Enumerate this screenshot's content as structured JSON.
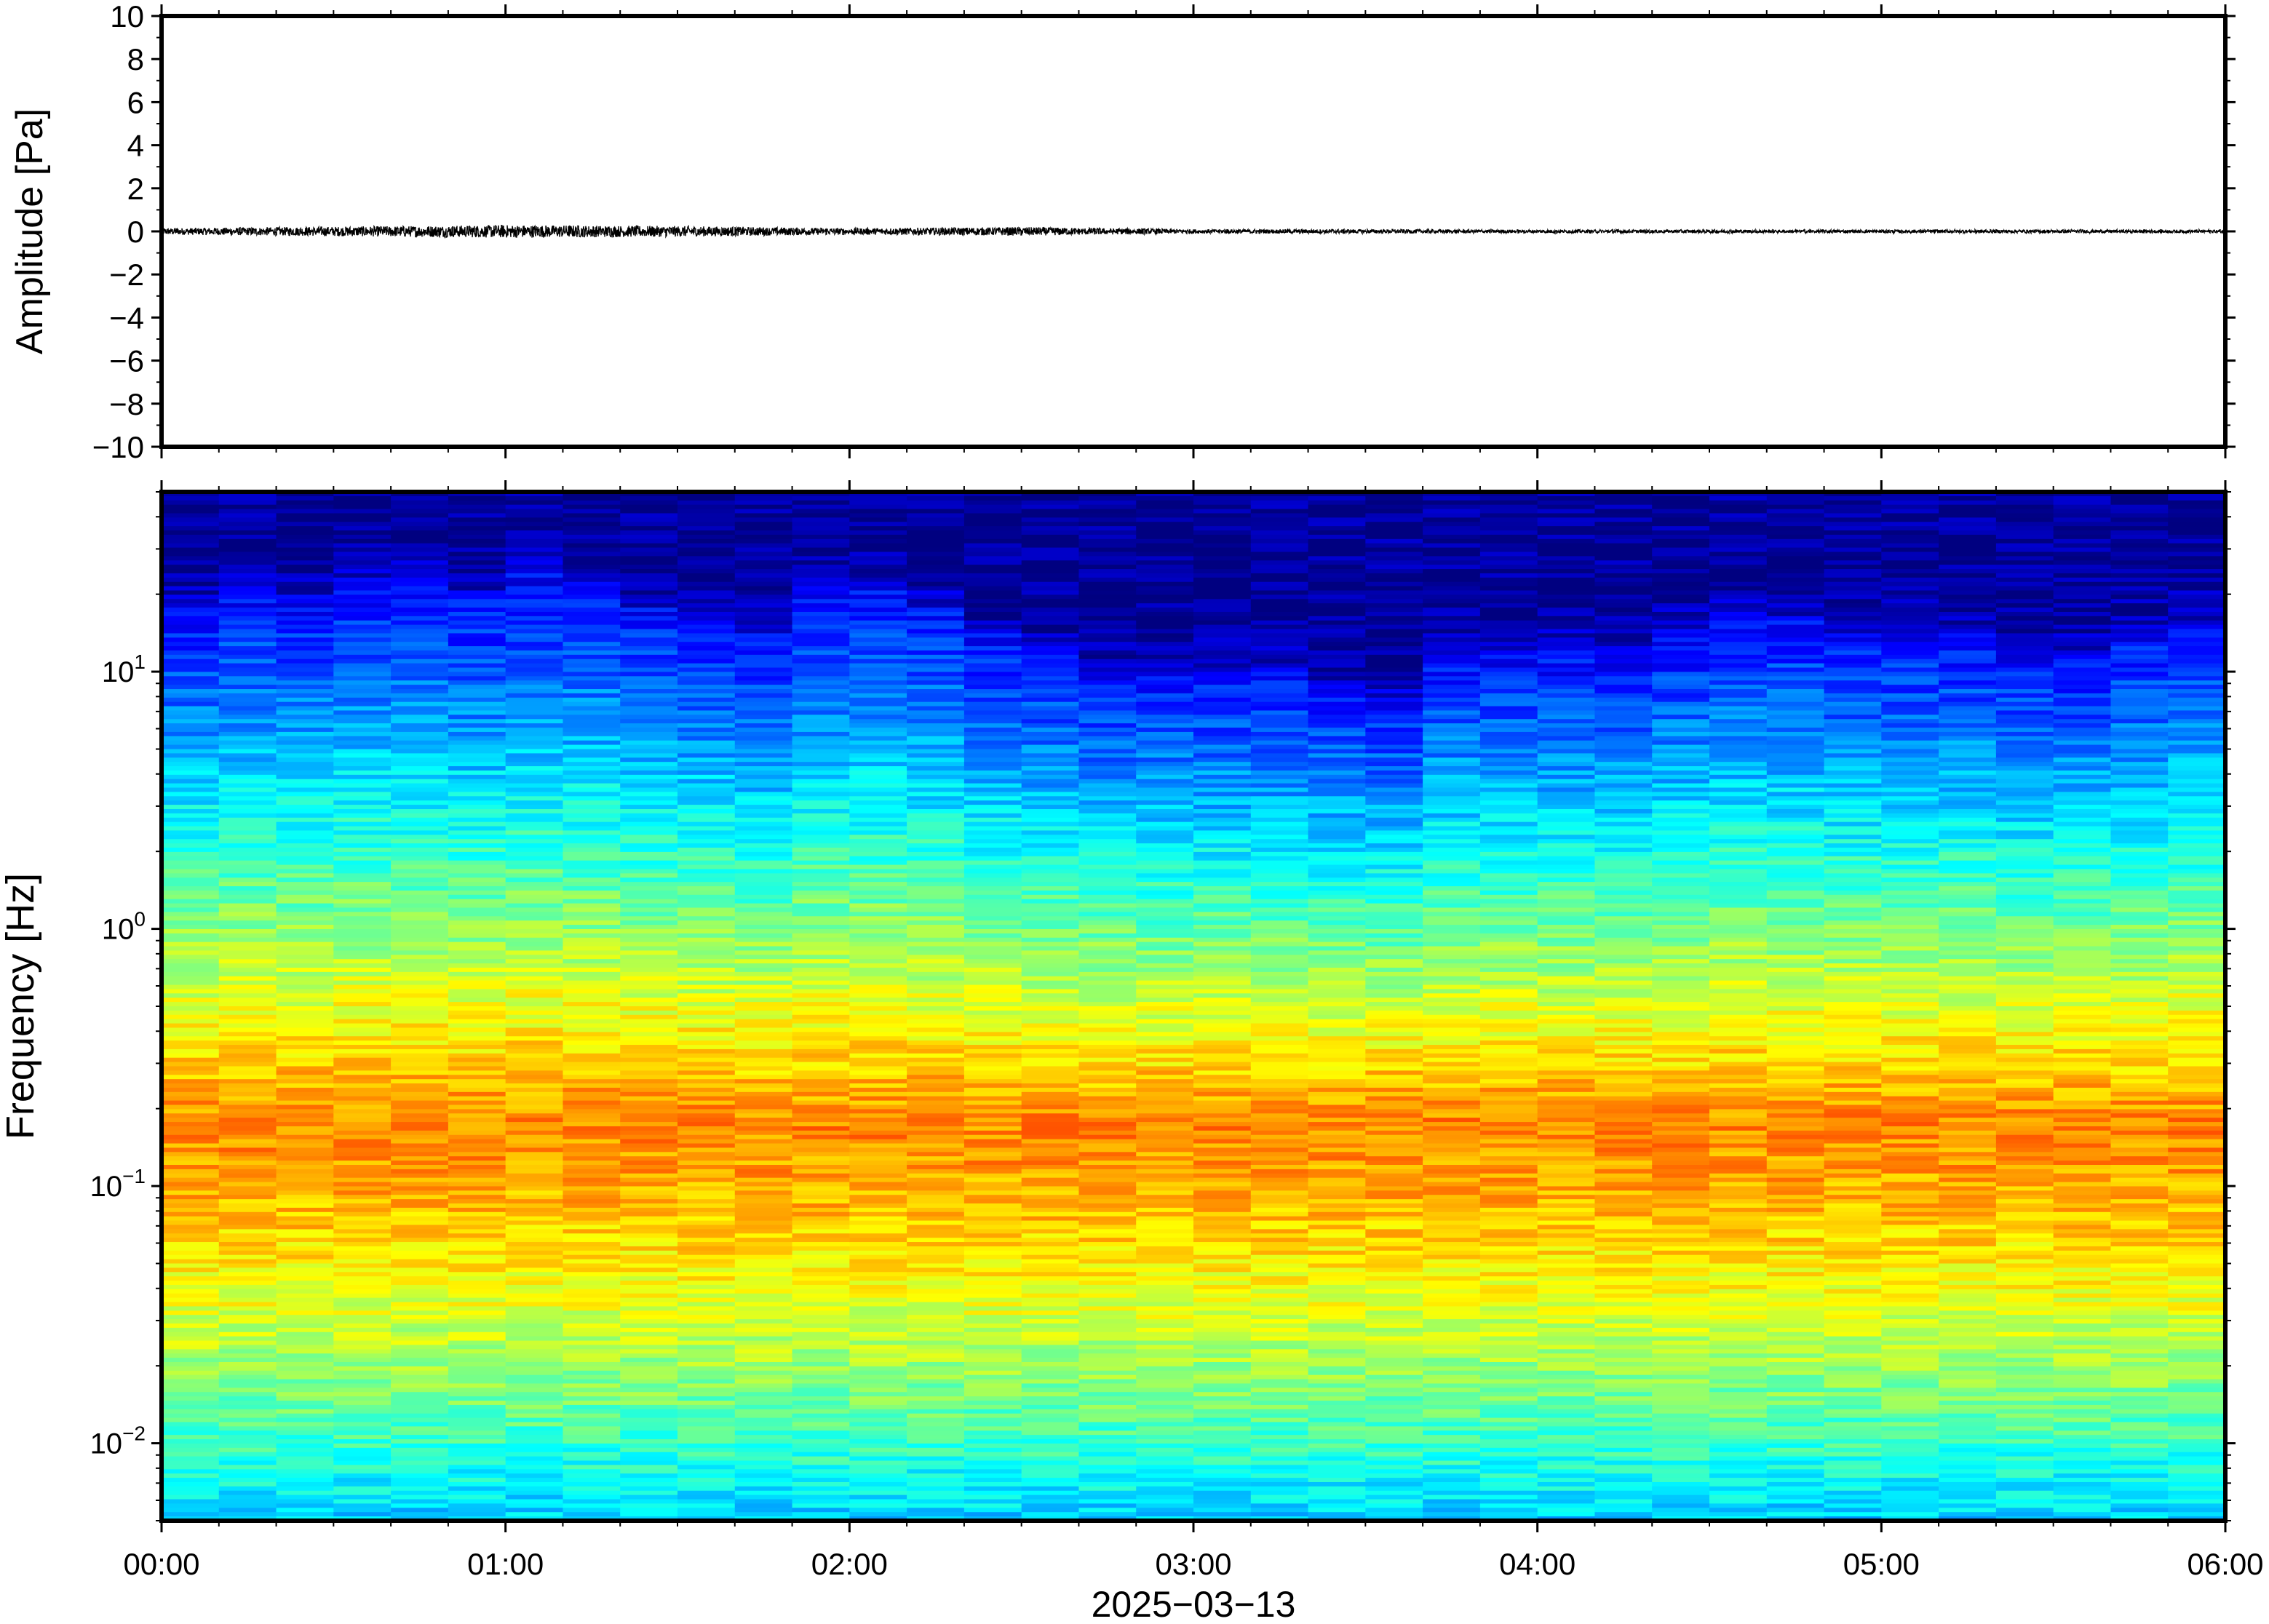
{
  "chart_data": [
    {
      "type": "line",
      "title": "",
      "ylabel": "Amplitude [Pa]",
      "xlabel": "2025−03−13",
      "ylim": [
        -10,
        10
      ],
      "yticks": [
        "10",
        "8",
        "6",
        "4",
        "2",
        "0",
        "−2",
        "−4",
        "−6",
        "−8",
        "−10"
      ],
      "ytick_values": [
        10,
        8,
        6,
        4,
        2,
        0,
        -2,
        -4,
        -6,
        -8,
        -10
      ],
      "xlim_hours": [
        0,
        6
      ],
      "series": [
        {
          "color": "#000000",
          "description_envelope_hours": [
            0,
            0.5,
            1.0,
            1.5,
            2.0,
            2.5,
            3.0,
            3.5,
            4.0,
            4.5,
            5.0,
            5.5,
            6.0
          ],
          "envelope_pa": [
            0.15,
            0.22,
            0.3,
            0.25,
            0.15,
            0.2,
            0.1,
            0.1,
            0.08,
            0.08,
            0.08,
            0.08,
            0.08
          ]
        }
      ],
      "grid": false
    },
    {
      "type": "heatmap",
      "title": "",
      "ylabel": "Frequency [Hz]",
      "xlabel": "2025−03−13",
      "yscale": "log",
      "ylim": [
        0.005,
        50
      ],
      "yticks": [
        {
          "value": 10,
          "base": "10",
          "exp": "1"
        },
        {
          "value": 1,
          "base": "10",
          "exp": "0"
        },
        {
          "value": 0.1,
          "base": "10",
          "exp": "−1"
        },
        {
          "value": 0.01,
          "base": "10",
          "exp": "−2"
        }
      ],
      "xticks": [
        "00:00",
        "01:00",
        "02:00",
        "03:00",
        "04:00",
        "05:00",
        "06:00"
      ],
      "xtick_hours": [
        0,
        1,
        2,
        3,
        4,
        5,
        6
      ],
      "colormap": "jet",
      "columns": 36,
      "column_width_minutes": 10,
      "upper_cutoff_hz": [
        18,
        22,
        20,
        22,
        22,
        20,
        24,
        22,
        18,
        16,
        14,
        20,
        22,
        18,
        14,
        12,
        10,
        10,
        10,
        10,
        9,
        8,
        12,
        12,
        12,
        12,
        14,
        16,
        16,
        14,
        14,
        14,
        12,
        12,
        14,
        16
      ],
      "microbarom_peak_hz": 0.18,
      "grid": false
    }
  ]
}
